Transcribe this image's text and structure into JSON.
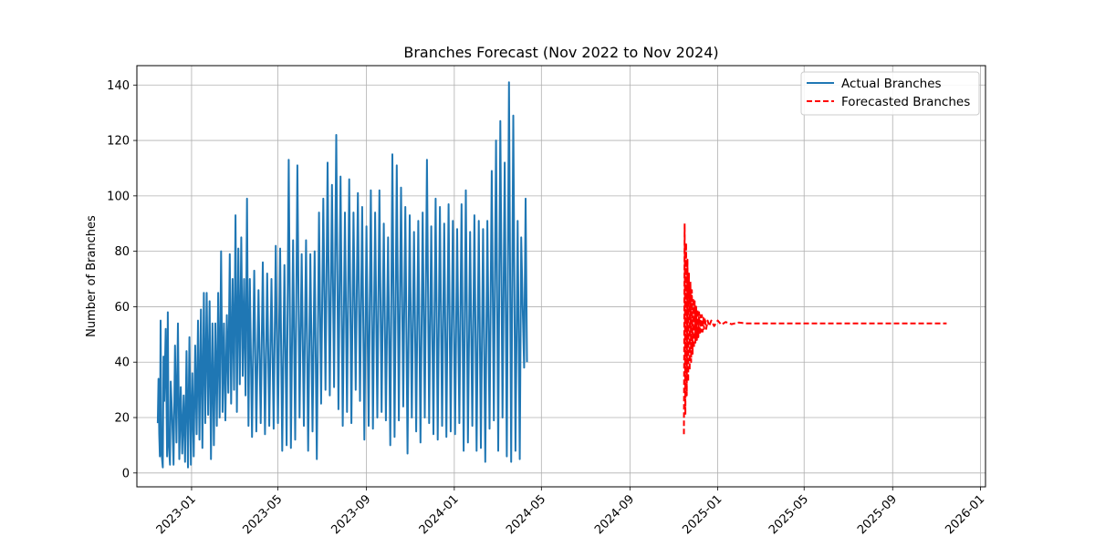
{
  "chart_data": {
    "type": "line",
    "title": "Branches Forecast (Nov 2022 to Nov 2024)",
    "xlabel": "",
    "ylabel": "Number of Branches",
    "xlim": [
      "2022-10-17",
      "2026-01-08"
    ],
    "ylim": [
      -5,
      147
    ],
    "x_ticks": [
      "2023-01",
      "2023-05",
      "2023-09",
      "2024-01",
      "2024-05",
      "2024-09",
      "2025-01",
      "2025-05",
      "2025-09",
      "2026-01"
    ],
    "y_ticks": [
      0,
      20,
      40,
      60,
      80,
      100,
      120,
      140
    ],
    "grid": true,
    "legend_position": "top-right",
    "series": [
      {
        "name": "Actual Branches",
        "color": "#1f77b4",
        "style": "solid",
        "points": [
          [
            "2022-11-15",
            18
          ],
          [
            "2022-11-16",
            34
          ],
          [
            "2022-11-17",
            14
          ],
          [
            "2022-11-18",
            6
          ],
          [
            "2022-11-19",
            55
          ],
          [
            "2022-11-20",
            8
          ],
          [
            "2022-11-22",
            2
          ],
          [
            "2022-11-23",
            42
          ],
          [
            "2022-11-24",
            26
          ],
          [
            "2022-11-26",
            52
          ],
          [
            "2022-11-28",
            6
          ],
          [
            "2022-11-29",
            58
          ],
          [
            "2022-11-30",
            12
          ],
          [
            "2022-12-02",
            3
          ],
          [
            "2022-12-03",
            33
          ],
          [
            "2022-12-05",
            20
          ],
          [
            "2022-12-07",
            3
          ],
          [
            "2022-12-09",
            46
          ],
          [
            "2022-12-11",
            11
          ],
          [
            "2022-12-13",
            54
          ],
          [
            "2022-12-15",
            5
          ],
          [
            "2022-12-17",
            31
          ],
          [
            "2022-12-19",
            7
          ],
          [
            "2022-12-21",
            28
          ],
          [
            "2022-12-23",
            4
          ],
          [
            "2022-12-25",
            44
          ],
          [
            "2022-12-27",
            2
          ],
          [
            "2022-12-29",
            49
          ],
          [
            "2022-12-31",
            3
          ],
          [
            "2023-01-02",
            36
          ],
          [
            "2023-01-04",
            6
          ],
          [
            "2023-01-06",
            46
          ],
          [
            "2023-01-08",
            14
          ],
          [
            "2023-01-10",
            55
          ],
          [
            "2023-01-12",
            12
          ],
          [
            "2023-01-14",
            59
          ],
          [
            "2023-01-16",
            9
          ],
          [
            "2023-01-18",
            65
          ],
          [
            "2023-01-20",
            18
          ],
          [
            "2023-01-22",
            65
          ],
          [
            "2023-01-24",
            21
          ],
          [
            "2023-01-26",
            62
          ],
          [
            "2023-01-28",
            5
          ],
          [
            "2023-01-30",
            54
          ],
          [
            "2023-02-01",
            10
          ],
          [
            "2023-02-03",
            54
          ],
          [
            "2023-02-05",
            17
          ],
          [
            "2023-02-07",
            65
          ],
          [
            "2023-02-09",
            20
          ],
          [
            "2023-02-11",
            80
          ],
          [
            "2023-02-13",
            22
          ],
          [
            "2023-02-15",
            54
          ],
          [
            "2023-02-17",
            19
          ],
          [
            "2023-02-19",
            57
          ],
          [
            "2023-02-21",
            29
          ],
          [
            "2023-02-23",
            79
          ],
          [
            "2023-02-25",
            25
          ],
          [
            "2023-02-27",
            70
          ],
          [
            "2023-03-01",
            30
          ],
          [
            "2023-03-03",
            93
          ],
          [
            "2023-03-05",
            22
          ],
          [
            "2023-03-07",
            81
          ],
          [
            "2023-03-09",
            32
          ],
          [
            "2023-03-11",
            85
          ],
          [
            "2023-03-13",
            35
          ],
          [
            "2023-03-15",
            70
          ],
          [
            "2023-03-17",
            28
          ],
          [
            "2023-03-19",
            99
          ],
          [
            "2023-03-21",
            17
          ],
          [
            "2023-03-23",
            70
          ],
          [
            "2023-03-26",
            13
          ],
          [
            "2023-03-29",
            73
          ],
          [
            "2023-04-01",
            15
          ],
          [
            "2023-04-04",
            66
          ],
          [
            "2023-04-07",
            18
          ],
          [
            "2023-04-10",
            76
          ],
          [
            "2023-04-13",
            14
          ],
          [
            "2023-04-16",
            72
          ],
          [
            "2023-04-19",
            17
          ],
          [
            "2023-04-22",
            70
          ],
          [
            "2023-04-25",
            16
          ],
          [
            "2023-04-28",
            82
          ],
          [
            "2023-05-01",
            18
          ],
          [
            "2023-05-04",
            81
          ],
          [
            "2023-05-07",
            8
          ],
          [
            "2023-05-10",
            75
          ],
          [
            "2023-05-13",
            10
          ],
          [
            "2023-05-16",
            113
          ],
          [
            "2023-05-19",
            9
          ],
          [
            "2023-05-22",
            84
          ],
          [
            "2023-05-25",
            12
          ],
          [
            "2023-05-28",
            111
          ],
          [
            "2023-05-31",
            20
          ],
          [
            "2023-06-03",
            79
          ],
          [
            "2023-06-06",
            17
          ],
          [
            "2023-06-09",
            84
          ],
          [
            "2023-06-12",
            8
          ],
          [
            "2023-06-15",
            79
          ],
          [
            "2023-06-18",
            15
          ],
          [
            "2023-06-21",
            80
          ],
          [
            "2023-06-24",
            5
          ],
          [
            "2023-06-27",
            94
          ],
          [
            "2023-06-30",
            25
          ],
          [
            "2023-07-03",
            99
          ],
          [
            "2023-07-06",
            30
          ],
          [
            "2023-07-09",
            112
          ],
          [
            "2023-07-12",
            28
          ],
          [
            "2023-07-15",
            104
          ],
          [
            "2023-07-18",
            31
          ],
          [
            "2023-07-21",
            122
          ],
          [
            "2023-07-24",
            23
          ],
          [
            "2023-07-27",
            107
          ],
          [
            "2023-07-30",
            17
          ],
          [
            "2023-08-02",
            94
          ],
          [
            "2023-08-05",
            22
          ],
          [
            "2023-08-08",
            106
          ],
          [
            "2023-08-11",
            18
          ],
          [
            "2023-08-14",
            94
          ],
          [
            "2023-08-17",
            30
          ],
          [
            "2023-08-20",
            101
          ],
          [
            "2023-08-23",
            26
          ],
          [
            "2023-08-26",
            96
          ],
          [
            "2023-08-29",
            12
          ],
          [
            "2023-09-01",
            89
          ],
          [
            "2023-09-04",
            17
          ],
          [
            "2023-09-07",
            102
          ],
          [
            "2023-09-10",
            16
          ],
          [
            "2023-09-13",
            94
          ],
          [
            "2023-09-16",
            20
          ],
          [
            "2023-09-19",
            102
          ],
          [
            "2023-09-22",
            22
          ],
          [
            "2023-09-25",
            90
          ],
          [
            "2023-09-28",
            19
          ],
          [
            "2023-10-01",
            85
          ],
          [
            "2023-10-04",
            10
          ],
          [
            "2023-10-07",
            115
          ],
          [
            "2023-10-10",
            13
          ],
          [
            "2023-10-13",
            111
          ],
          [
            "2023-10-16",
            19
          ],
          [
            "2023-10-19",
            103
          ],
          [
            "2023-10-22",
            24
          ],
          [
            "2023-10-25",
            96
          ],
          [
            "2023-10-28",
            7
          ],
          [
            "2023-10-31",
            93
          ],
          [
            "2023-11-03",
            20
          ],
          [
            "2023-11-06",
            87
          ],
          [
            "2023-11-09",
            15
          ],
          [
            "2023-11-12",
            91
          ],
          [
            "2023-11-15",
            11
          ],
          [
            "2023-11-18",
            94
          ],
          [
            "2023-11-21",
            20
          ],
          [
            "2023-11-24",
            113
          ],
          [
            "2023-11-27",
            18
          ],
          [
            "2023-11-30",
            89
          ],
          [
            "2023-12-03",
            14
          ],
          [
            "2023-12-06",
            99
          ],
          [
            "2023-12-09",
            12
          ],
          [
            "2023-12-12",
            96
          ],
          [
            "2023-12-15",
            17
          ],
          [
            "2023-12-18",
            90
          ],
          [
            "2023-12-21",
            13
          ],
          [
            "2023-12-24",
            97
          ],
          [
            "2023-12-27",
            15
          ],
          [
            "2023-12-30",
            91
          ],
          [
            "2024-01-02",
            14
          ],
          [
            "2024-01-05",
            88
          ],
          [
            "2024-01-08",
            18
          ],
          [
            "2024-01-11",
            97
          ],
          [
            "2024-01-14",
            8
          ],
          [
            "2024-01-17",
            102
          ],
          [
            "2024-01-20",
            11
          ],
          [
            "2024-01-23",
            87
          ],
          [
            "2024-01-26",
            17
          ],
          [
            "2024-01-29",
            93
          ],
          [
            "2024-02-01",
            8
          ],
          [
            "2024-02-04",
            91
          ],
          [
            "2024-02-07",
            9
          ],
          [
            "2024-02-10",
            88
          ],
          [
            "2024-02-13",
            4
          ],
          [
            "2024-02-16",
            91
          ],
          [
            "2024-02-19",
            16
          ],
          [
            "2024-02-22",
            109
          ],
          [
            "2024-02-25",
            19
          ],
          [
            "2024-02-28",
            120
          ],
          [
            "2024-03-02",
            8
          ],
          [
            "2024-03-05",
            127
          ],
          [
            "2024-03-08",
            20
          ],
          [
            "2024-03-11",
            112
          ],
          [
            "2024-03-14",
            6
          ],
          [
            "2024-03-17",
            141
          ],
          [
            "2024-03-20",
            4
          ],
          [
            "2024-03-23",
            129
          ],
          [
            "2024-03-26",
            8
          ],
          [
            "2024-03-29",
            91
          ],
          [
            "2024-04-01",
            5
          ],
          [
            "2024-04-03",
            85
          ],
          [
            "2024-04-05",
            60
          ],
          [
            "2024-04-07",
            38
          ],
          [
            "2024-04-09",
            99
          ],
          [
            "2024-04-11",
            40
          ]
        ]
      },
      {
        "name": "Forecasted Branches",
        "color": "#ff0000",
        "style": "dashed",
        "points": [
          [
            "2024-11-15",
            14
          ],
          [
            "2024-11-16",
            90
          ],
          [
            "2024-11-17",
            21
          ],
          [
            "2024-11-18",
            83
          ],
          [
            "2024-11-19",
            28
          ],
          [
            "2024-11-20",
            77
          ],
          [
            "2024-11-21",
            33
          ],
          [
            "2024-11-22",
            72
          ],
          [
            "2024-11-23",
            37
          ],
          [
            "2024-11-24",
            69
          ],
          [
            "2024-11-25",
            40
          ],
          [
            "2024-11-26",
            66
          ],
          [
            "2024-11-27",
            43
          ],
          [
            "2024-11-28",
            63
          ],
          [
            "2024-11-29",
            45
          ],
          [
            "2024-11-30",
            62
          ],
          [
            "2024-12-01",
            47
          ],
          [
            "2024-12-02",
            60
          ],
          [
            "2024-12-03",
            48
          ],
          [
            "2024-12-04",
            59
          ],
          [
            "2024-12-05",
            49
          ],
          [
            "2024-12-06",
            58
          ],
          [
            "2024-12-07",
            50
          ],
          [
            "2024-12-08",
            57
          ],
          [
            "2024-12-09",
            51
          ],
          [
            "2024-12-10",
            57
          ],
          [
            "2024-12-11",
            51
          ],
          [
            "2024-12-12",
            56
          ],
          [
            "2024-12-13",
            52
          ],
          [
            "2024-12-14",
            56
          ],
          [
            "2024-12-16",
            52
          ],
          [
            "2024-12-18",
            55
          ],
          [
            "2024-12-20",
            53
          ],
          [
            "2024-12-23",
            55
          ],
          [
            "2024-12-27",
            53
          ],
          [
            "2025-01-01",
            55
          ],
          [
            "2025-01-06",
            53.5
          ],
          [
            "2025-01-12",
            54.5
          ],
          [
            "2025-01-20",
            53.7
          ],
          [
            "2025-01-30",
            54.3
          ],
          [
            "2025-02-10",
            54
          ],
          [
            "2025-04-01",
            54
          ],
          [
            "2025-07-01",
            54
          ],
          [
            "2025-10-01",
            54
          ],
          [
            "2025-11-15",
            54
          ]
        ]
      }
    ]
  }
}
